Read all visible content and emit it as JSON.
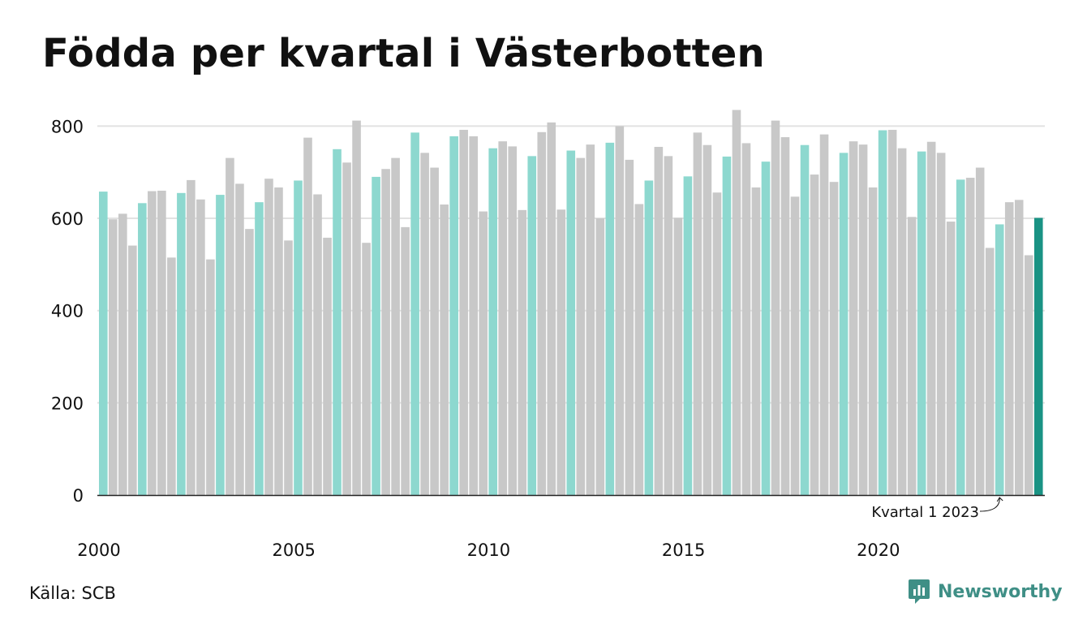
{
  "title": "Födda per kvartal i Västerbotten",
  "source": "Källa: SCB",
  "brand": {
    "name": "Newsworthy",
    "icon": "newsworthy-logo-icon"
  },
  "colors": {
    "q1": "#8dd8cf",
    "other": "#c8c8c8",
    "latest": "#1a9384",
    "brand": "#3f8f86"
  },
  "chart_data": {
    "type": "bar",
    "title": "Födda per kvartal i Västerbotten",
    "xlabel": "",
    "ylabel": "",
    "ylim": [
      0,
      850
    ],
    "yticks": [
      0,
      200,
      400,
      600,
      800
    ],
    "xtick_labels": [
      "2000",
      "2005",
      "2010",
      "2015",
      "2020"
    ],
    "grid": true,
    "annotation": {
      "text": "Kvartal 1 2023",
      "target": "2023 Q1"
    },
    "series": [
      {
        "start": "2000 Q1",
        "values": [
          658,
          598,
          610,
          541,
          633,
          659,
          660,
          515,
          655,
          683,
          641,
          511,
          651,
          731,
          675,
          577,
          635,
          686,
          667,
          552,
          682,
          775,
          652,
          558,
          750,
          721,
          812,
          547,
          690,
          707,
          731,
          581,
          786,
          742,
          710,
          630,
          778,
          792,
          778,
          615,
          752,
          767,
          756,
          618,
          735,
          787,
          808,
          619,
          747,
          731,
          760,
          600,
          764,
          800,
          727,
          631,
          682,
          755,
          735,
          601,
          691,
          786,
          759,
          656,
          734,
          835,
          763,
          667,
          723,
          812,
          776,
          647,
          759,
          695,
          782,
          679,
          742,
          767,
          760,
          667,
          791,
          792,
          752,
          603,
          745,
          766,
          742,
          593,
          684,
          688,
          710,
          536,
          587,
          635,
          640,
          520,
          601
        ]
      }
    ]
  }
}
